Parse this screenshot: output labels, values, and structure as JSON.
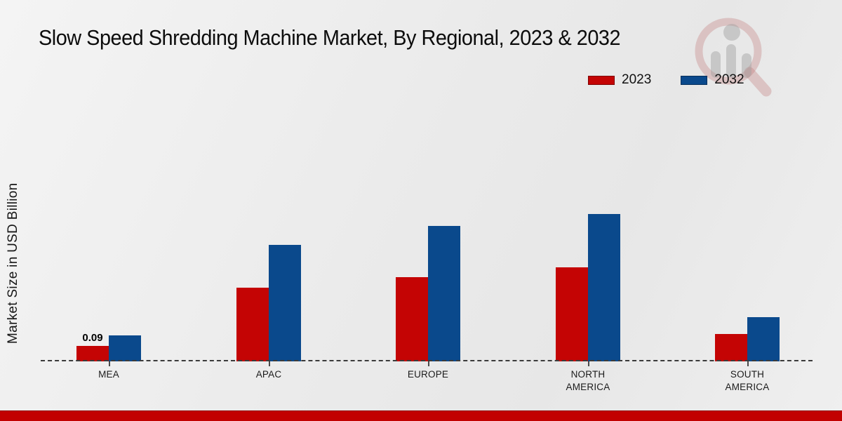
{
  "header": {
    "title": "Slow Speed Shredding Machine Market, By Regional, 2023 & 2032"
  },
  "y_axis": {
    "label": "Market Size in USD Billion"
  },
  "legend": {
    "position": "top-right"
  },
  "watermark": {
    "icon": "magnifier-bar-chart-logo"
  },
  "footer": {
    "color": "#c20000"
  },
  "colors": {
    "series_2023": "#c40404",
    "series_2032": "#0a498c",
    "baseline": "#3b3b3b"
  },
  "chart_data": {
    "type": "bar",
    "title": "Slow Speed Shredding Machine Market, By Regional, 2023 & 2032",
    "ylabel": "Market Size in USD Billion",
    "categories": [
      "MEA",
      "APAC",
      "EUROPE",
      "NORTH AMERICA",
      "SOUTH AMERICA"
    ],
    "series": [
      {
        "name": "2023",
        "color": "#c40404",
        "values": [
          0.09,
          0.43,
          0.49,
          0.55,
          0.16
        ]
      },
      {
        "name": "2032",
        "color": "#0a498c",
        "values": [
          0.15,
          0.68,
          0.79,
          0.86,
          0.26
        ]
      }
    ],
    "data_labels": {
      "visible": [
        {
          "category": "MEA",
          "series": "2023",
          "text": "0.09"
        }
      ]
    },
    "ylim": [
      0,
      1.0
    ],
    "grid": false,
    "y_axis_ticks": "hidden",
    "baseline_style": "dashed",
    "legend_position": "top-right",
    "units": "USD Billion"
  }
}
